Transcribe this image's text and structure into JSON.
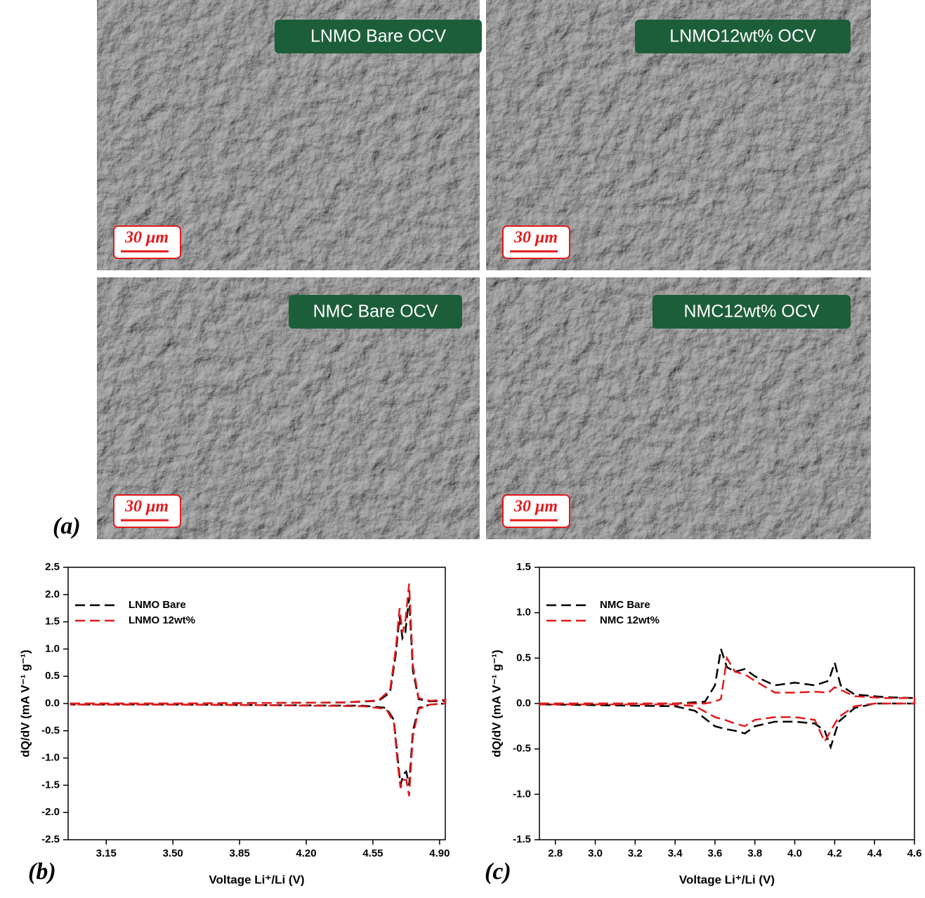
{
  "images": {
    "label": "(a)",
    "panels": [
      {
        "title": "LNMO Bare OCV",
        "scale": "30 μm"
      },
      {
        "title": "LNMO12wt% OCV",
        "scale": "30 μm"
      },
      {
        "title": "NMC Bare OCV",
        "scale": "30 μm"
      },
      {
        "title": "NMC12wt% OCV",
        "scale": "30 μm"
      }
    ]
  },
  "chart_data": [
    {
      "type": "line",
      "panel_label": "(b)",
      "xlabel": "Voltage Li⁺/Li (V)",
      "ylabel": "dQ/dV (mA V⁻¹ g⁻¹)",
      "xlim": [
        2.95,
        4.93
      ],
      "ylim": [
        -2.5,
        2.5
      ],
      "legend": "upper left",
      "xticks": [
        3.15,
        {
          "value": 3.5,
          "label": "3.50"
        },
        3.85,
        {
          "value": 4.2,
          "label": "4.20"
        },
        4.55,
        {
          "value": 4.9,
          "label": "4.90"
        }
      ],
      "yticks": [
        {
          "value": -2.5,
          "label": "-2.5"
        },
        {
          "value": -2,
          "label": "-2.0"
        },
        -1.5,
        {
          "value": -1,
          "label": "-1.0"
        },
        -0.5,
        {
          "value": 0,
          "label": "0.0"
        },
        0.5,
        {
          "value": 1,
          "label": "1.0"
        },
        1.5,
        {
          "value": 2,
          "label": "2.0"
        },
        2.5
      ],
      "x": [
        2.96,
        3.5,
        4.0,
        4.4,
        4.58,
        4.64,
        4.67,
        4.69,
        4.705,
        4.72,
        4.74,
        4.76,
        4.79,
        4.85,
        4.93,
        4.93,
        4.85,
        4.79,
        4.76,
        4.74,
        4.725,
        4.71,
        4.695,
        4.68,
        4.66,
        4.62,
        4.5,
        4.0,
        3.5,
        2.96
      ],
      "series": [
        {
          "name": "LNMO Bare",
          "color": "#000000",
          "values": [
            0.0,
            0.0,
            0.01,
            0.02,
            0.05,
            0.2,
            0.9,
            1.6,
            1.2,
            1.3,
            1.95,
            0.6,
            0.08,
            0.04,
            0.05,
            0.0,
            -0.02,
            -0.08,
            -0.5,
            -1.5,
            -1.25,
            -1.3,
            -1.5,
            -1.0,
            -0.3,
            -0.08,
            -0.04,
            -0.03,
            -0.02,
            -0.02
          ]
        },
        {
          "name": "LNMO 12wt%",
          "color": "#e31a1c",
          "values": [
            0.0,
            0.0,
            0.01,
            0.02,
            0.06,
            0.25,
            1.0,
            1.75,
            1.3,
            1.5,
            2.2,
            0.7,
            0.1,
            0.05,
            0.07,
            0.0,
            -0.02,
            -0.1,
            -0.6,
            -1.7,
            -1.4,
            -1.4,
            -1.55,
            -1.1,
            -0.35,
            -0.1,
            -0.05,
            -0.03,
            -0.02,
            -0.02
          ]
        }
      ]
    },
    {
      "type": "line",
      "panel_label": "(c)",
      "xlabel": "Voltage Li⁺/Li (V)",
      "ylabel": "dQ/dV (mA V⁻¹ g⁻¹)",
      "xlim": [
        2.72,
        4.6
      ],
      "ylim": [
        -1.5,
        1.5
      ],
      "legend": "upper left",
      "xticks": [
        2.8,
        {
          "value": 3,
          "label": "3.0"
        },
        3.2,
        3.4,
        3.6,
        3.8,
        {
          "value": 4,
          "label": "4.0"
        },
        4.2,
        4.4,
        4.6
      ],
      "yticks": [
        -1.5,
        {
          "value": -1,
          "label": "-1.0"
        },
        -0.5,
        {
          "value": 0,
          "label": "0.0"
        },
        0.5,
        {
          "value": 1,
          "label": "1.0"
        },
        1.5
      ],
      "x": [
        2.72,
        3.4,
        3.55,
        3.6,
        3.63,
        3.66,
        3.7,
        3.75,
        3.8,
        3.9,
        4.0,
        4.1,
        4.17,
        4.2,
        4.23,
        4.3,
        4.45,
        4.6,
        4.6,
        4.4,
        4.3,
        4.22,
        4.18,
        4.15,
        4.1,
        4.0,
        3.9,
        3.8,
        3.75,
        3.7,
        3.65,
        3.6,
        3.5,
        3.4,
        2.72
      ],
      "series": [
        {
          "name": "NMC Bare",
          "color": "#000000",
          "values": [
            0.0,
            0.0,
            0.02,
            0.2,
            0.6,
            0.4,
            0.35,
            0.38,
            0.3,
            0.2,
            0.23,
            0.2,
            0.25,
            0.45,
            0.2,
            0.1,
            0.07,
            0.06,
            0.0,
            0.0,
            -0.05,
            -0.2,
            -0.48,
            -0.3,
            -0.22,
            -0.2,
            -0.2,
            -0.25,
            -0.33,
            -0.3,
            -0.28,
            -0.25,
            -0.08,
            -0.03,
            -0.01
          ]
        },
        {
          "name": "NMC 12wt%",
          "color": "#e31a1c",
          "values": [
            0.0,
            0.0,
            0.0,
            0.02,
            0.05,
            0.5,
            0.35,
            0.32,
            0.25,
            0.12,
            0.12,
            0.13,
            0.12,
            0.18,
            0.15,
            0.08,
            0.06,
            0.06,
            0.0,
            0.0,
            -0.03,
            -0.15,
            -0.3,
            -0.42,
            -0.18,
            -0.15,
            -0.15,
            -0.18,
            -0.25,
            -0.22,
            -0.18,
            -0.15,
            -0.03,
            -0.01,
            -0.01
          ]
        }
      ]
    }
  ]
}
